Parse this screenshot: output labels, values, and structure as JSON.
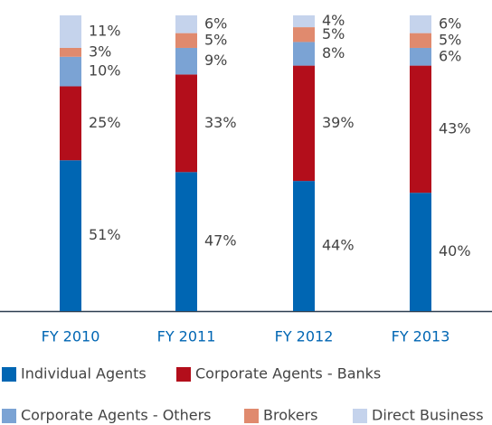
{
  "chart_data": {
    "type": "stacked_bar",
    "categories": [
      "FY 2010",
      "FY 2011",
      "FY 2012",
      "FY 2013"
    ],
    "ylim": [
      0,
      100
    ],
    "series": [
      {
        "name": "Individual Agents",
        "color": "#0066b3",
        "values": [
          51,
          47,
          44,
          40
        ],
        "value_labels": [
          "51%",
          "47%",
          "44%",
          "40%"
        ]
      },
      {
        "name": "Corporate Agents - Banks",
        "color": "#b30e1b",
        "values": [
          25,
          33,
          39,
          43
        ],
        "value_labels": [
          "25%",
          "33%",
          "39%",
          "43%"
        ]
      },
      {
        "name": "Corporate Agents - Others",
        "color": "#7ba3d4",
        "values": [
          10,
          9,
          8,
          6
        ],
        "value_labels": [
          "10%",
          "9%",
          "8%",
          "6%"
        ]
      },
      {
        "name": "Brokers",
        "color": "#e08a6e",
        "values": [
          3,
          5,
          5,
          5
        ],
        "value_labels": [
          "3%",
          "5%",
          "5%",
          "5%"
        ]
      },
      {
        "name": "Direct Business",
        "color": "#c5d3ec",
        "values": [
          11,
          6,
          4,
          6
        ],
        "value_labels": [
          "11%",
          "6%",
          "4%",
          "6%"
        ]
      }
    ]
  }
}
